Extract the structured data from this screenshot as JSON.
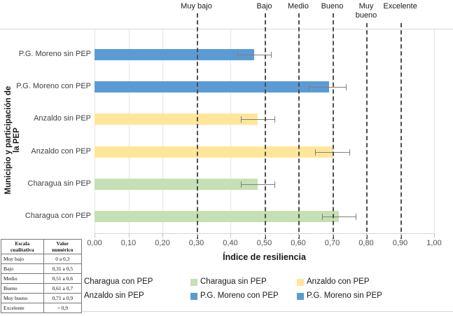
{
  "chart_data": {
    "type": "bar",
    "orientation": "horizontal",
    "title": "",
    "xlabel": "Índice de resiliencia",
    "ylabel": "Municipio y participación de la PEP",
    "xlim": [
      0,
      1
    ],
    "grid": true,
    "legend_position": "bottom",
    "xticks": [
      {
        "label": "0,00",
        "value": 0.0
      },
      {
        "label": "0,10",
        "value": 0.1
      },
      {
        "label": "0,20",
        "value": 0.2
      },
      {
        "label": "0,30",
        "value": 0.3
      },
      {
        "label": "0,40",
        "value": 0.4
      },
      {
        "label": "0,50",
        "value": 0.5
      },
      {
        "label": "0,60",
        "value": 0.6
      },
      {
        "label": "0,70",
        "value": 0.7
      },
      {
        "label": "0,80",
        "value": 0.8
      },
      {
        "label": "0,90",
        "value": 0.9
      },
      {
        "label": "1,00",
        "value": 1.0
      }
    ],
    "bars": [
      {
        "category": "P.G. Moreno sin PEP",
        "value": 0.47,
        "error_low": 0.42,
        "error_high": 0.52,
        "color": "#5B9BD5"
      },
      {
        "category": "P.G. Moreno con PEP",
        "value": 0.69,
        "error_low": 0.63,
        "error_high": 0.74,
        "color": "#5B9BD5"
      },
      {
        "category": "Anzaldo sin PEP",
        "value": 0.48,
        "error_low": 0.43,
        "error_high": 0.53,
        "color": "#FFE699"
      },
      {
        "category": "Anzaldo con PEP",
        "value": 0.7,
        "error_low": 0.65,
        "error_high": 0.75,
        "color": "#FFE699"
      },
      {
        "category": "Charagua sin PEP",
        "value": 0.48,
        "error_low": 0.43,
        "error_high": 0.53,
        "color": "#C5E0B4"
      },
      {
        "category": "Charagua con PEP",
        "value": 0.72,
        "error_low": 0.67,
        "error_high": 0.77,
        "color": "#C5E0B4"
      }
    ],
    "thresholds": [
      {
        "label": "Muy bajo",
        "value": 0.3
      },
      {
        "label": "Bajo",
        "value": 0.5
      },
      {
        "label": "Medio",
        "value": 0.6
      },
      {
        "label": "Bueno",
        "value": 0.7
      },
      {
        "label": "Muy bueno",
        "value": 0.8
      },
      {
        "label": "Excelente",
        "value": 0.9
      }
    ]
  },
  "legend": {
    "items": [
      {
        "label": "Charagua con PEP",
        "color": "#C5E0B4",
        "swatch_hidden": true
      },
      {
        "label": "Charagua sin PEP",
        "color": "#C5E0B4",
        "swatch_hidden": false
      },
      {
        "label": "Anzaldo con PEP",
        "color": "#FFE699",
        "swatch_hidden": false
      },
      {
        "label": "Anzaldo sin PEP",
        "color": "#FFE699",
        "swatch_hidden": true
      },
      {
        "label": "P.G. Moreno con PEP",
        "color": "#5B9BD5",
        "swatch_hidden": false
      },
      {
        "label": "P.G. Moreno sin PEP",
        "color": "#5B9BD5",
        "swatch_hidden": false
      }
    ]
  },
  "scale_table": {
    "headers": [
      "Escala cualitativa",
      "Valor numérico"
    ],
    "rows": [
      [
        "Muy bajo",
        "0 a 0,3"
      ],
      [
        "Bajo",
        "0,31 a 0,5"
      ],
      [
        "Medio",
        "0,51 a 0,6"
      ],
      [
        "Bueno",
        "0,61 a 0,7"
      ],
      [
        "Muy bueno",
        "0,71 a 0,9"
      ],
      [
        "Excelente",
        "> 0,9"
      ]
    ]
  },
  "colors": {
    "bar_blue": "#5B9BD5",
    "bar_yellow": "#FFE699",
    "bar_green": "#C5E0B4",
    "dashed_line": "#4d4d4d",
    "gridline": "#e4e4e4",
    "error_bar": "#7f7f7f"
  }
}
